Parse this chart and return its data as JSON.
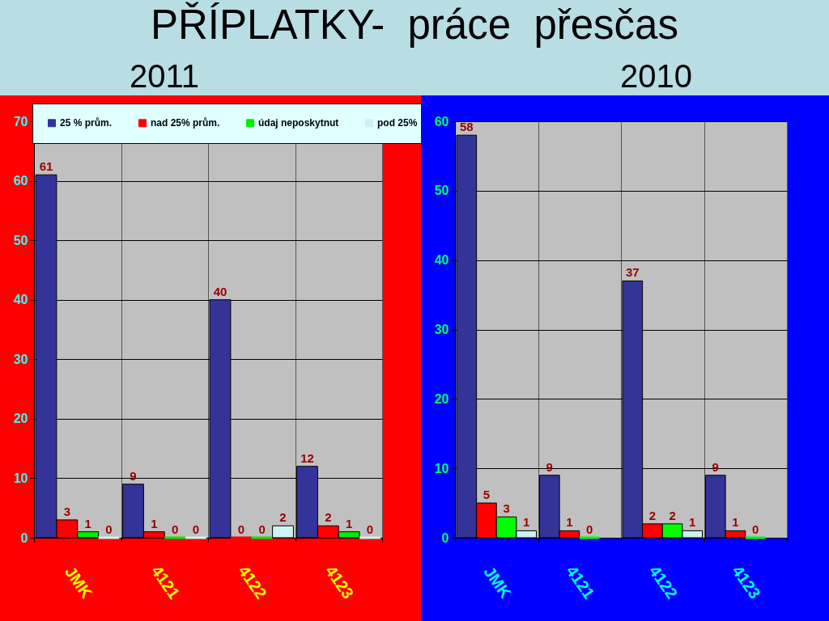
{
  "chart_data": [
    {
      "type": "bar",
      "title": "PŘÍPLATKY-  práce  přesčas",
      "subtitle": "2011",
      "categories": [
        "JMK",
        "4121",
        "4122",
        "4123"
      ],
      "series": [
        {
          "name": "25 % prům.",
          "color": "#333399",
          "values": [
            61,
            9,
            40,
            12
          ]
        },
        {
          "name": "nad 25% prům.",
          "color": "#ff0000",
          "values": [
            3,
            1,
            0,
            2
          ]
        },
        {
          "name": "údaj neposkytnut",
          "color": "#00ee00",
          "values": [
            1,
            0,
            0,
            1
          ]
        },
        {
          "name": "pod 25%",
          "color": "#ccf2f2",
          "values": [
            0,
            0,
            2,
            0
          ]
        }
      ],
      "ylim": [
        0,
        70
      ],
      "yticks": [
        0,
        10,
        20,
        30,
        40,
        50,
        60,
        70
      ],
      "grid": true,
      "legend": "top",
      "data_labels": true
    },
    {
      "type": "bar",
      "subtitle": "2010",
      "categories": [
        "JMK",
        "4121",
        "4122",
        "4123"
      ],
      "series": [
        {
          "color": "#333399",
          "values": [
            58,
            9,
            37,
            9
          ]
        },
        {
          "color": "#ff0000",
          "values": [
            5,
            1,
            2,
            1
          ]
        },
        {
          "color": "#00ff00",
          "values": [
            3,
            0,
            2,
            0
          ]
        },
        {
          "color": "#ccf2f2",
          "values": [
            1,
            null,
            1,
            null
          ]
        }
      ],
      "ylim": [
        0,
        60
      ],
      "yticks": [
        0,
        10,
        20,
        30,
        40,
        50,
        60
      ],
      "grid": true,
      "data_labels": true
    }
  ]
}
